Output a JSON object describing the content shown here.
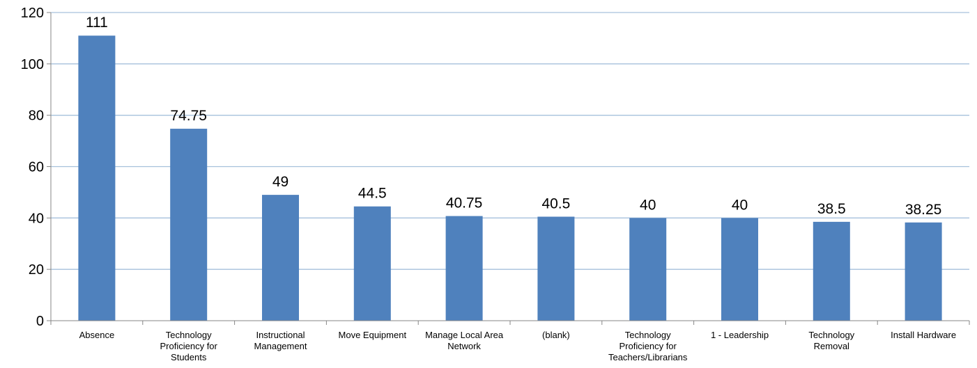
{
  "chart_data": {
    "type": "bar",
    "categories": [
      "Absence",
      "Technology Proficiency for Students",
      "Instructional Management",
      "Move Equipment",
      "Manage Local Area Network",
      "(blank)",
      "Technology Proficiency for Teachers/Librarians",
      "1 - Leadership",
      "Technology Removal",
      "Install Hardware"
    ],
    "category_label_lines": [
      [
        "Absence"
      ],
      [
        "Technology",
        "Proficiency for",
        "Students"
      ],
      [
        "Instructional",
        "Management"
      ],
      [
        "Move Equipment"
      ],
      [
        "Manage Local Area",
        "Network"
      ],
      [
        "(blank)"
      ],
      [
        "Technology",
        "Proficiency for",
        "Teachers/Librarians"
      ],
      [
        "1 - Leadership"
      ],
      [
        "Technology",
        "Removal"
      ],
      [
        "Install Hardware"
      ]
    ],
    "values": [
      111,
      74.75,
      49,
      44.5,
      40.75,
      40.5,
      40,
      40,
      38.5,
      38.25
    ],
    "data_labels": [
      "111",
      "74.75",
      "49",
      "44.5",
      "40.75",
      "40.5",
      "40",
      "40",
      "38.5",
      "38.25"
    ],
    "yticks": [
      0,
      20,
      40,
      60,
      80,
      100,
      120
    ],
    "ylim": [
      0,
      120
    ],
    "title": "",
    "xlabel": "",
    "ylabel": "",
    "grid": true,
    "legend": "none",
    "bar_color": "#4f81bd",
    "grid_color": "#a6c1dc",
    "axis_color": "#868686"
  }
}
